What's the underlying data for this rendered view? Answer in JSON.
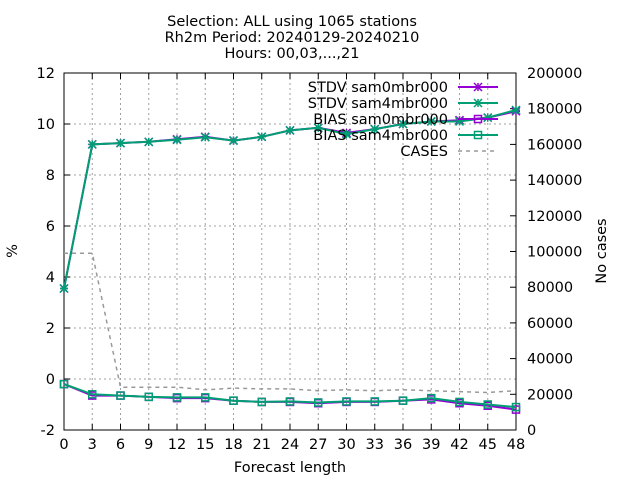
{
  "title_lines": [
    "Selection: ALL using  1065 stations",
    "Rh2m   Period: 20240129-20240210",
    "Hours: 00,03,...,21"
  ],
  "chart_data": {
    "type": "line",
    "title": "Selection: ALL using  1065 stations\nRh2m   Period: 20240129-20240210\nHours: 00,03,...,21",
    "xlabel": "Forecast length",
    "ylabel": "%",
    "y2label": "No cases",
    "x": [
      0,
      3,
      6,
      9,
      12,
      15,
      18,
      21,
      24,
      27,
      30,
      33,
      36,
      39,
      42,
      45,
      48
    ],
    "xlim": [
      0,
      48
    ],
    "ylim": [
      -2,
      12
    ],
    "y2lim": [
      0,
      200000
    ],
    "xticks": [
      "0",
      "3",
      "6",
      "9",
      "12",
      "15",
      "18",
      "21",
      "24",
      "27",
      "30",
      "33",
      "36",
      "39",
      "42",
      "45",
      "48"
    ],
    "yticks": [
      "-2",
      "0",
      "2",
      "4",
      "6",
      "8",
      "10",
      "12"
    ],
    "y2ticks": [
      "0",
      "20000",
      "40000",
      "60000",
      "80000",
      "100000",
      "120000",
      "140000",
      "160000",
      "180000",
      "200000"
    ],
    "grid": true,
    "legend_position": "top-right",
    "series": [
      {
        "name": "STDV sam0mbr000",
        "axis": "y",
        "color": "#9400d3",
        "marker": "star",
        "values": [
          3.55,
          9.2,
          9.25,
          9.3,
          9.4,
          9.5,
          9.35,
          9.5,
          9.75,
          9.85,
          9.65,
          9.8,
          10.0,
          10.1,
          10.15,
          10.25,
          10.5
        ]
      },
      {
        "name": "STDV sam4mbr000",
        "axis": "y",
        "color": "#009e73",
        "marker": "star",
        "values": [
          3.55,
          9.2,
          9.25,
          9.3,
          9.38,
          9.48,
          9.35,
          9.5,
          9.75,
          9.85,
          9.6,
          9.8,
          10.0,
          10.1,
          10.1,
          10.25,
          10.55
        ]
      },
      {
        "name": "BIAS sam0mbr000",
        "axis": "y",
        "color": "#9400d3",
        "marker": "square",
        "values": [
          -0.2,
          -0.65,
          -0.65,
          -0.7,
          -0.75,
          -0.75,
          -0.85,
          -0.9,
          -0.9,
          -0.95,
          -0.9,
          -0.9,
          -0.85,
          -0.8,
          -0.95,
          -1.05,
          -1.2
        ]
      },
      {
        "name": "BIAS sam4mbr000",
        "axis": "y",
        "color": "#009e73",
        "marker": "square",
        "values": [
          -0.2,
          -0.6,
          -0.65,
          -0.7,
          -0.72,
          -0.72,
          -0.85,
          -0.9,
          -0.88,
          -0.92,
          -0.88,
          -0.88,
          -0.85,
          -0.75,
          -0.9,
          -1.0,
          -1.1
        ]
      },
      {
        "name": "CASES",
        "axis": "y2",
        "color": "#999999",
        "marker": "none",
        "dashed": true,
        "values": [
          99000,
          99000,
          24000,
          24000,
          24000,
          22500,
          23500,
          23000,
          23000,
          22000,
          22500,
          22000,
          22500,
          22000,
          21500,
          21000,
          22000
        ]
      }
    ]
  }
}
